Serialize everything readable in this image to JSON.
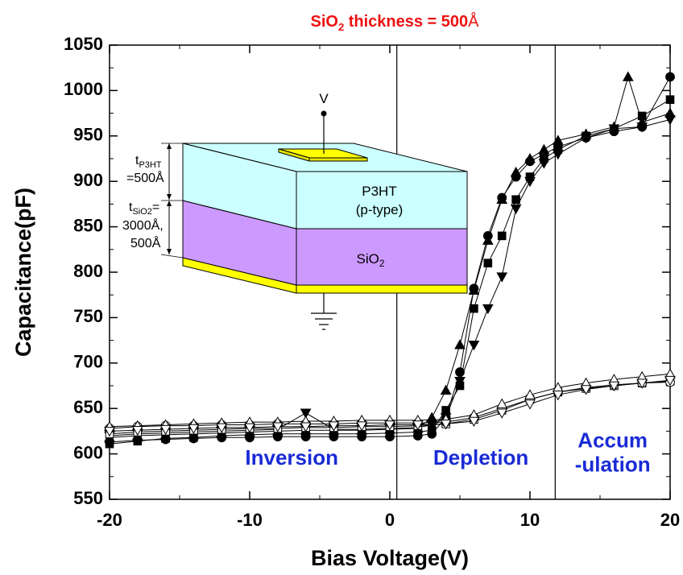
{
  "chart_data": {
    "type": "line",
    "title_main": "SiO",
    "title_sub": "2",
    "title_rest": " thickness = 500",
    "title_unit": "Å",
    "xlabel": "Bias Voltage(V)",
    "ylabel": "Capacitance(pF)",
    "xlim": [
      -20,
      20
    ],
    "ylim": [
      550,
      1050
    ],
    "xticks": [
      -20,
      -10,
      0,
      10,
      20
    ],
    "yticks": [
      550,
      600,
      650,
      700,
      750,
      800,
      850,
      900,
      950,
      1000,
      1050
    ],
    "region_dividers": [
      0.5,
      11.8
    ],
    "regions": [
      {
        "lines": [
          "Inversion"
        ],
        "x": -7,
        "y": 588
      },
      {
        "lines": [
          "Depletion"
        ],
        "x": 6.5,
        "y": 588
      },
      {
        "lines": [
          "Accum",
          "-ulation"
        ],
        "x": 15.9,
        "y": 607
      }
    ],
    "series": [
      {
        "marker": "square",
        "filled": true,
        "x": [
          -20,
          -18,
          -16,
          -14,
          -12,
          -10,
          -8,
          -6,
          -4,
          -2,
          0,
          2,
          3,
          4,
          5,
          6,
          7,
          8,
          9,
          10,
          11,
          12,
          14,
          16,
          18,
          20
        ],
        "y": [
          611,
          614,
          617,
          618,
          620,
          621,
          622,
          622,
          622,
          622,
          623,
          624,
          626,
          648,
          675,
          760,
          810,
          840,
          880,
          905,
          925,
          935,
          950,
          958,
          972,
          990
        ]
      },
      {
        "marker": "circle",
        "filled": true,
        "x": [
          -20,
          -18,
          -16,
          -14,
          -12,
          -10,
          -8,
          -6,
          -4,
          -2,
          0,
          2,
          3,
          4,
          5,
          6,
          7,
          8,
          9,
          10,
          11,
          12,
          14,
          16,
          18,
          20
        ],
        "y": [
          613,
          615,
          616,
          617,
          618,
          618,
          619,
          619,
          619,
          619,
          619,
          620,
          622,
          640,
          690,
          782,
          840,
          882,
          905,
          922,
          930,
          938,
          948,
          955,
          960,
          1015
        ]
      },
      {
        "marker": "triangle-up",
        "filled": true,
        "x": [
          -20,
          -18,
          -16,
          -14,
          -12,
          -10,
          -8,
          -6,
          -4,
          -2,
          0,
          2,
          3,
          4,
          5,
          6,
          7,
          8,
          9,
          10,
          11,
          12,
          14,
          16,
          17,
          18,
          20
        ],
        "y": [
          618,
          620,
          621,
          622,
          623,
          624,
          625,
          626,
          626,
          626,
          627,
          628,
          640,
          670,
          720,
          780,
          835,
          880,
          910,
          925,
          935,
          945,
          952,
          960,
          1015,
          965,
          975
        ]
      },
      {
        "marker": "triangle-down",
        "filled": true,
        "x": [
          -20,
          -18,
          -16,
          -14,
          -12,
          -10,
          -8,
          -6,
          -4,
          -2,
          0,
          2,
          3,
          4,
          5,
          6,
          7,
          8,
          9,
          10,
          11,
          12,
          14,
          16,
          18,
          20
        ],
        "y": [
          620,
          622,
          623,
          624,
          625,
          626,
          627,
          645,
          627,
          627,
          628,
          629,
          632,
          640,
          680,
          720,
          760,
          795,
          870,
          900,
          920,
          930,
          948,
          958,
          960,
          968
        ]
      },
      {
        "marker": "square",
        "filled": false,
        "x": [
          -20,
          -18,
          -16,
          -14,
          -12,
          -10,
          -8,
          -6,
          -4,
          -2,
          0,
          2,
          4,
          6,
          8,
          10,
          12,
          14,
          16,
          18,
          20
        ],
        "y": [
          622,
          624,
          625,
          626,
          627,
          628,
          628,
          629,
          629,
          630,
          630,
          631,
          633,
          638,
          648,
          660,
          668,
          672,
          675,
          678,
          680
        ]
      },
      {
        "marker": "circle",
        "filled": false,
        "x": [
          -20,
          -18,
          -16,
          -14,
          -12,
          -10,
          -8,
          -6,
          -4,
          -2,
          0,
          2,
          4,
          6,
          8,
          10,
          12,
          14,
          16,
          18,
          20
        ],
        "y": [
          628,
          630,
          631,
          631,
          632,
          632,
          633,
          633,
          633,
          634,
          634,
          634,
          635,
          640,
          650,
          660,
          668,
          673,
          676,
          678,
          679
        ]
      },
      {
        "marker": "triangle-up",
        "filled": false,
        "x": [
          -20,
          -18,
          -16,
          -14,
          -12,
          -10,
          -8,
          -6,
          -4,
          -2,
          0,
          2,
          4,
          6,
          8,
          10,
          12,
          14,
          16,
          18,
          20
        ],
        "y": [
          630,
          631,
          632,
          633,
          634,
          635,
          635,
          636,
          636,
          637,
          637,
          637,
          638,
          643,
          655,
          665,
          673,
          678,
          682,
          685,
          688
        ]
      },
      {
        "marker": "triangle-down",
        "filled": false,
        "x": [
          -20,
          -18,
          -16,
          -14,
          -12,
          -10,
          -8,
          -6,
          -4,
          -2,
          0,
          2,
          4,
          6,
          8,
          10,
          12,
          14,
          16,
          18,
          20
        ],
        "y": [
          625,
          626,
          627,
          628,
          629,
          629,
          630,
          630,
          631,
          631,
          632,
          632,
          633,
          636,
          645,
          655,
          665,
          671,
          675,
          678,
          681
        ]
      }
    ]
  },
  "schematic": {
    "voltage_label": "V",
    "layer_top_line1": "P3HT",
    "layer_top_line2": "(p-type)",
    "layer_mid_main": "SiO",
    "layer_mid_sub": "2",
    "t1_main": "t",
    "t1_sub": "P3HT",
    "t1_value": "=500Å",
    "t2_main": "t",
    "t2_sub": "SiO2",
    "t2_eq": "=",
    "t2_value1": "3000Å,",
    "t2_value2": "500Å",
    "colors": {
      "p3ht": "#ccffff",
      "sio2": "#cc99ff",
      "metal": "#ffff00"
    }
  }
}
